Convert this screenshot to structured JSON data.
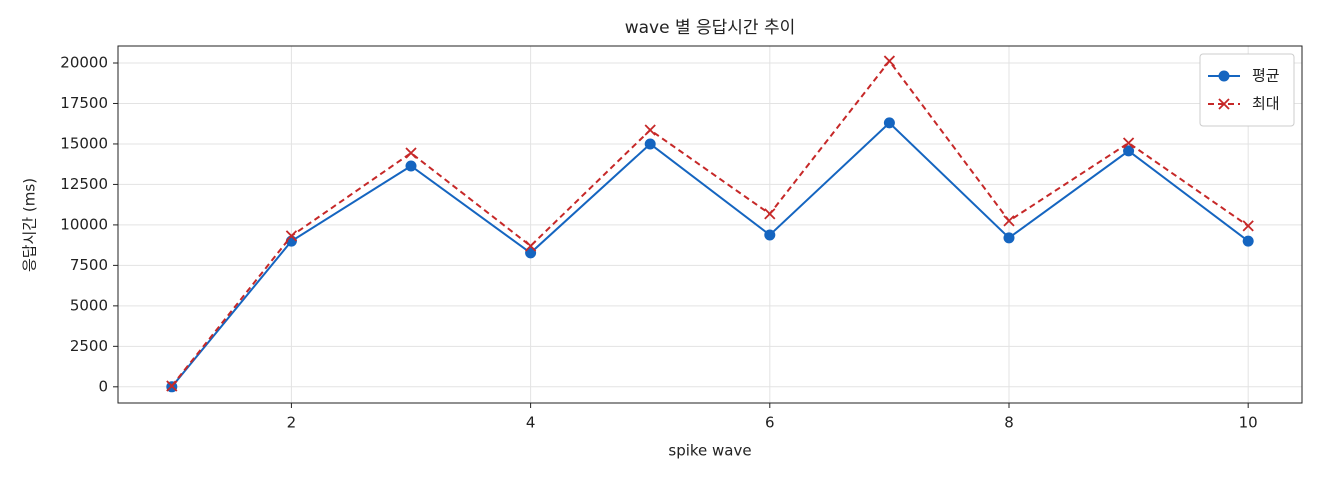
{
  "chart_data": {
    "type": "line",
    "title": "wave 별 응답시간 추이",
    "x_label": "spike wave",
    "y_label": "응답시간 (ms)",
    "x": [
      1,
      2,
      3,
      4,
      5,
      6,
      7,
      8,
      9,
      10
    ],
    "series": [
      {
        "name": "평균",
        "color": "#1565c0",
        "marker": "o",
        "linestyle": "solid",
        "values": [
          0,
          9000,
          13640,
          8270,
          15000,
          9380,
          16300,
          9200,
          14570,
          9000
        ]
      },
      {
        "name": "최대",
        "color": "#c62828",
        "marker": "x",
        "linestyle": "dashed",
        "values": [
          50,
          9320,
          14440,
          8700,
          15860,
          10680,
          20120,
          10250,
          15060,
          9940
        ]
      }
    ],
    "xlim": [
      0.55,
      10.45
    ],
    "xticks": [
      2,
      4,
      6,
      8,
      10
    ],
    "ylim": [
      -1000,
      21050
    ],
    "yticks": [
      0,
      2500,
      5000,
      7500,
      10000,
      12500,
      15000,
      17500,
      20000
    ],
    "grid": true,
    "legend": "upper right"
  }
}
